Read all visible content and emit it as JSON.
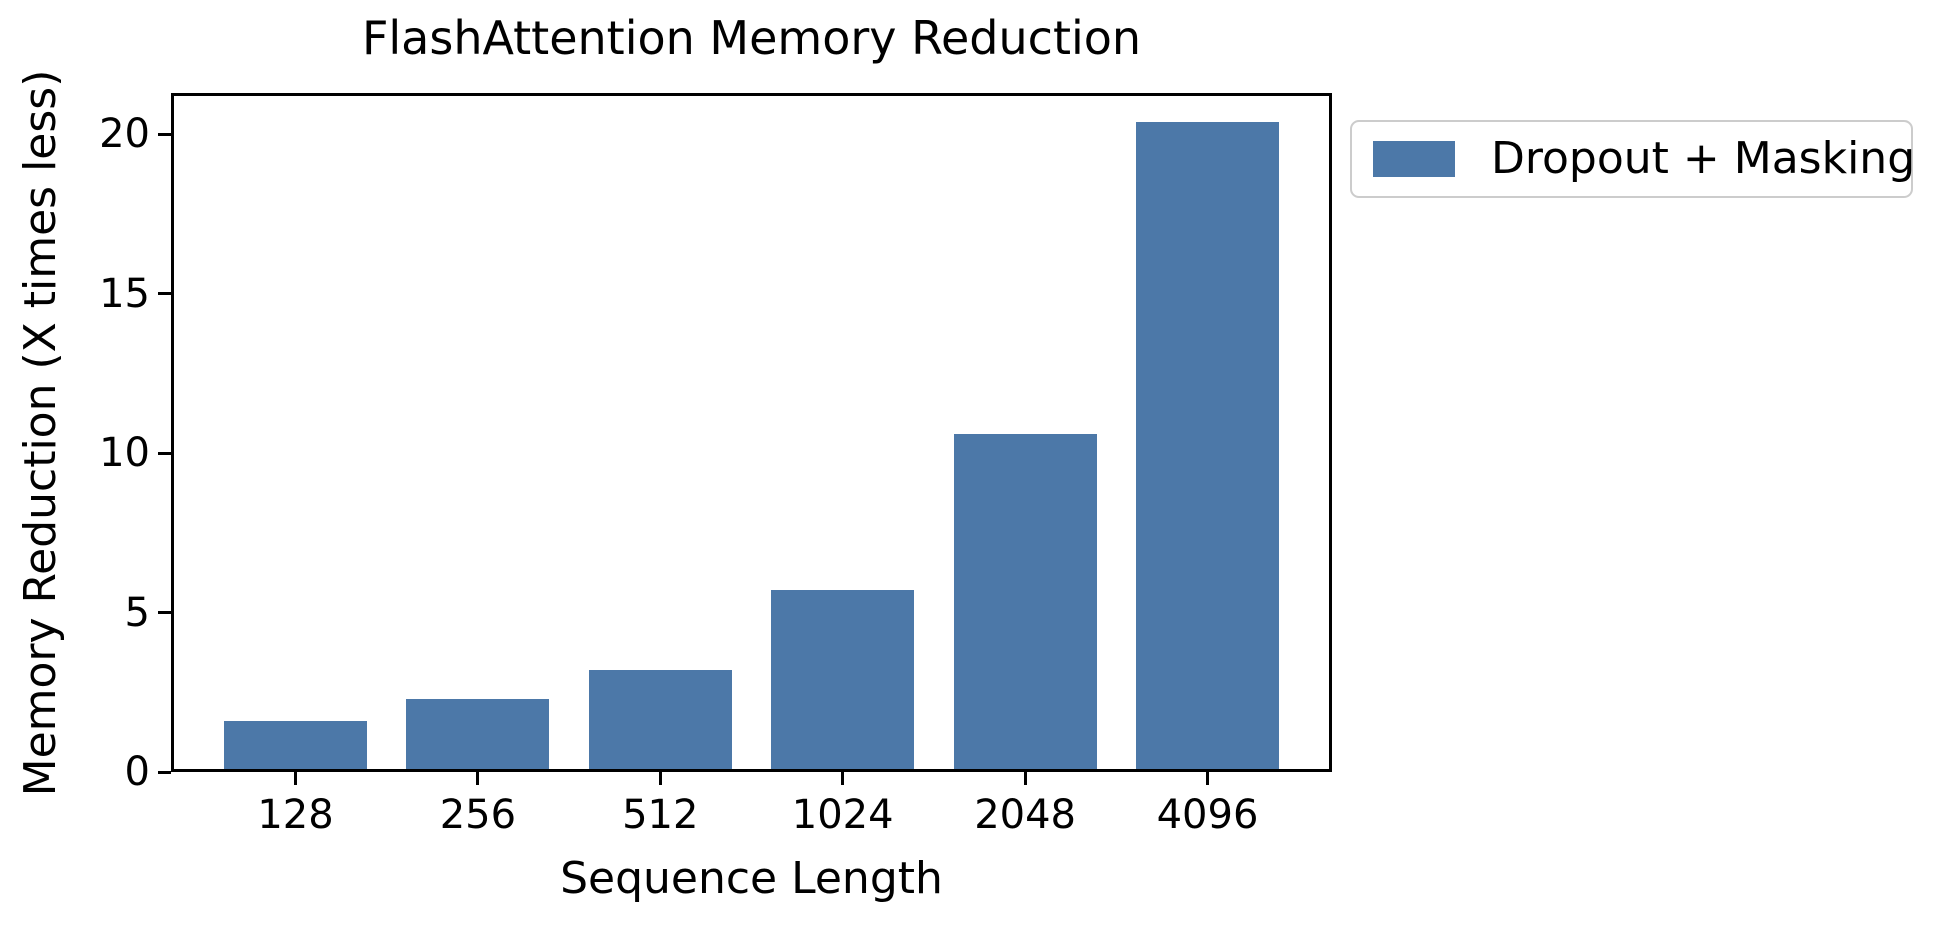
{
  "chart_data": {
    "type": "bar",
    "title": "FlashAttention Memory Reduction",
    "xlabel": "Sequence Length",
    "ylabel": "Memory Reduction (X times less)",
    "categories": [
      "128",
      "256",
      "512",
      "1024",
      "2048",
      "4096"
    ],
    "series": [
      {
        "name": "Dropout + Masking",
        "values": [
          1.5,
          2.2,
          3.1,
          5.6,
          10.5,
          20.3
        ]
      }
    ],
    "yticks": [
      0,
      5,
      10,
      15,
      20
    ],
    "ylim": [
      0,
      21.3
    ],
    "bar_color": "#4c78a8",
    "axis_color": "#000000",
    "legend_position": "outside-upper-right",
    "legend_border_color": "#cccccc",
    "grid": false
  }
}
